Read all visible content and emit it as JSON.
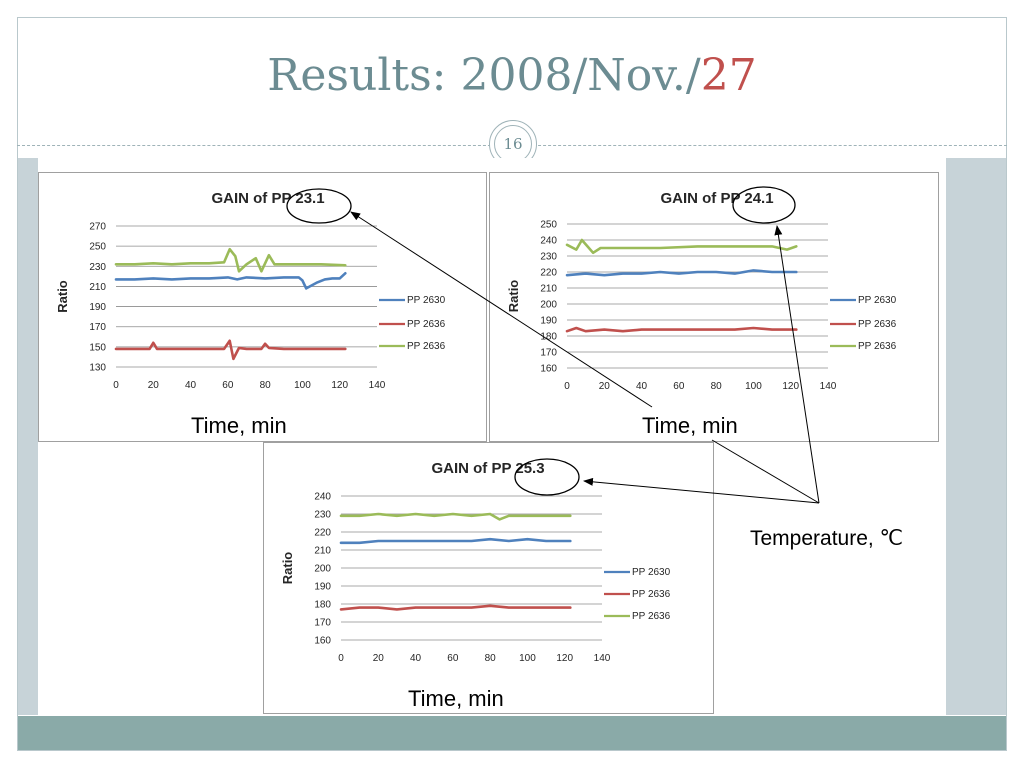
{
  "slide": {
    "title_main": "Results: 2008/Nov./",
    "title_accent": "27",
    "page_number": "16",
    "temperature_label": "Temperature, ℃",
    "colors": {
      "title": "#6c8c92",
      "accent": "#c0504d",
      "band": "#c7d3d8",
      "footer": "#8aaaa8"
    }
  },
  "chart_data": [
    {
      "type": "line",
      "title": "GAIN of PP 23.1",
      "xlabel": "Time, min",
      "ylabel": "Ratio",
      "xlim": [
        0,
        140
      ],
      "ylim": [
        130,
        270
      ],
      "xticks": [
        0,
        20,
        40,
        60,
        80,
        100,
        120,
        140
      ],
      "yticks": [
        130,
        150,
        170,
        190,
        210,
        230,
        250,
        270
      ],
      "grid": "horizontal",
      "legend_position": "right",
      "series": [
        {
          "name": "PP 2630",
          "color": "#4f81bd",
          "x": [
            0,
            10,
            20,
            30,
            40,
            50,
            60,
            65,
            70,
            80,
            90,
            98,
            100,
            102,
            104,
            108,
            112,
            116,
            120,
            123
          ],
          "y": [
            217,
            217,
            218,
            217,
            218,
            218,
            219,
            217,
            219,
            218,
            219,
            219,
            216,
            208,
            210,
            214,
            217,
            218,
            218,
            223
          ]
        },
        {
          "name": "PP 2636",
          "color": "#c0504d",
          "x": [
            0,
            10,
            18,
            20,
            22,
            30,
            40,
            50,
            58,
            61,
            63,
            66,
            70,
            78,
            80,
            82,
            90,
            100,
            110,
            123
          ],
          "y": [
            148,
            148,
            148,
            154,
            148,
            148,
            148,
            148,
            148,
            156,
            138,
            149,
            148,
            148,
            153,
            149,
            148,
            148,
            148,
            148
          ]
        },
        {
          "name": "PP 2636",
          "color": "#9bbb59",
          "x": [
            0,
            10,
            20,
            30,
            40,
            50,
            58,
            61,
            64,
            66,
            70,
            75,
            78,
            82,
            85,
            90,
            100,
            110,
            123
          ],
          "y": [
            232,
            232,
            233,
            232,
            233,
            233,
            234,
            247,
            240,
            225,
            232,
            238,
            225,
            241,
            232,
            232,
            232,
            232,
            231
          ]
        }
      ],
      "annotation_circle_on": "23.1"
    },
    {
      "type": "line",
      "title": "GAIN of PP 24.1",
      "xlabel": "Time, min",
      "ylabel": "Ratio",
      "xlim": [
        0,
        140
      ],
      "ylim": [
        160,
        250
      ],
      "xticks": [
        0,
        20,
        40,
        60,
        80,
        100,
        120,
        140
      ],
      "yticks": [
        160,
        170,
        180,
        190,
        200,
        210,
        220,
        230,
        240,
        250
      ],
      "grid": "horizontal",
      "legend_position": "right",
      "series": [
        {
          "name": "PP 2630",
          "color": "#4f81bd",
          "x": [
            0,
            10,
            20,
            30,
            40,
            50,
            60,
            70,
            80,
            90,
            100,
            110,
            123
          ],
          "y": [
            218,
            219,
            218,
            219,
            219,
            220,
            219,
            220,
            220,
            219,
            221,
            220,
            220
          ]
        },
        {
          "name": "PP 2636",
          "color": "#c0504d",
          "x": [
            0,
            5,
            10,
            20,
            30,
            40,
            50,
            60,
            70,
            80,
            90,
            100,
            110,
            123
          ],
          "y": [
            183,
            185,
            183,
            184,
            183,
            184,
            184,
            184,
            184,
            184,
            184,
            185,
            184,
            184
          ]
        },
        {
          "name": "PP 2636",
          "color": "#9bbb59",
          "x": [
            0,
            5,
            8,
            11,
            14,
            18,
            25,
            35,
            50,
            70,
            90,
            110,
            118,
            123
          ],
          "y": [
            237,
            234,
            240,
            236,
            232,
            235,
            235,
            235,
            235,
            236,
            236,
            236,
            234,
            236
          ]
        }
      ],
      "annotation_circle_on": "24.1"
    },
    {
      "type": "line",
      "title": "GAIN of PP 25.3",
      "xlabel": "Time, min",
      "ylabel": "Ratio",
      "xlim": [
        0,
        140
      ],
      "ylim": [
        160,
        240
      ],
      "xticks": [
        0,
        20,
        40,
        60,
        80,
        100,
        120,
        140
      ],
      "yticks": [
        160,
        170,
        180,
        190,
        200,
        210,
        220,
        230,
        240
      ],
      "grid": "horizontal",
      "legend_position": "right",
      "series": [
        {
          "name": "PP 2630",
          "color": "#4f81bd",
          "x": [
            0,
            10,
            20,
            30,
            40,
            50,
            60,
            70,
            80,
            90,
            100,
            110,
            123
          ],
          "y": [
            214,
            214,
            215,
            215,
            215,
            215,
            215,
            215,
            216,
            215,
            216,
            215,
            215
          ]
        },
        {
          "name": "PP 2636",
          "color": "#c0504d",
          "x": [
            0,
            10,
            20,
            30,
            40,
            50,
            60,
            70,
            80,
            90,
            100,
            110,
            123
          ],
          "y": [
            177,
            178,
            178,
            177,
            178,
            178,
            178,
            178,
            179,
            178,
            178,
            178,
            178
          ]
        },
        {
          "name": "PP 2636",
          "color": "#9bbb59",
          "x": [
            0,
            10,
            20,
            30,
            40,
            50,
            60,
            70,
            80,
            85,
            90,
            100,
            105,
            110,
            123
          ],
          "y": [
            229,
            229,
            230,
            229,
            230,
            229,
            230,
            229,
            230,
            227,
            229,
            229,
            229,
            229,
            229
          ]
        }
      ],
      "annotation_circle_on": "25.3"
    }
  ]
}
